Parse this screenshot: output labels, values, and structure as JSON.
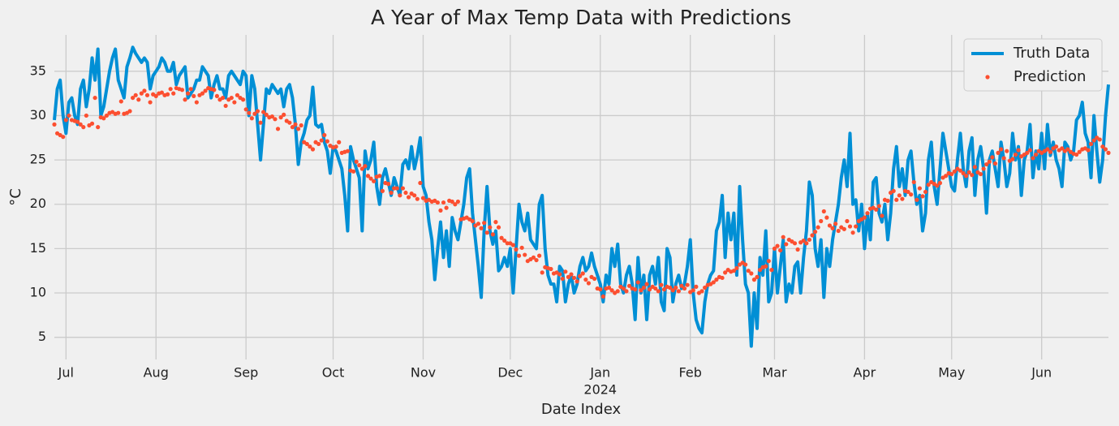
{
  "chart_data": {
    "type": "line",
    "title": "A Year of Max Temp Data with Predictions",
    "xlabel": "Date Index",
    "ylabel": "°C",
    "year_label": "2024",
    "categories": [
      null,
      null,
      null,
      null,
      "Jul",
      null,
      null,
      null,
      null,
      null,
      null,
      null,
      null,
      null,
      null,
      null,
      null,
      null,
      null,
      null,
      null,
      null,
      null,
      null,
      null,
      null,
      null,
      null,
      null,
      null,
      null,
      null,
      null,
      null,
      null,
      "Aug",
      null,
      null,
      null,
      null,
      null,
      null,
      null,
      null,
      null,
      null,
      null,
      null,
      null,
      null,
      null,
      null,
      null,
      null,
      null,
      null,
      null,
      null,
      null,
      null,
      null,
      null,
      null,
      null,
      null,
      null,
      "Sep",
      null,
      null,
      null,
      null,
      null,
      null,
      null,
      null,
      null,
      null,
      null,
      null,
      null,
      null,
      null,
      null,
      null,
      null,
      null,
      null,
      null,
      null,
      null,
      null,
      null,
      null,
      null,
      null,
      null,
      "Oct",
      null,
      null,
      null,
      null,
      null,
      null,
      null,
      null,
      null,
      null,
      null,
      null,
      null,
      null,
      null,
      null,
      null,
      null,
      null,
      null,
      null,
      null,
      null,
      null,
      null,
      null,
      null,
      null,
      null,
      null,
      "Nov",
      null,
      null,
      null,
      null,
      null,
      null,
      null,
      null,
      null,
      null,
      null,
      null,
      null,
      null,
      null,
      null,
      null,
      null,
      null,
      null,
      null,
      null,
      null,
      null,
      null,
      null,
      null,
      null,
      null,
      "Dec",
      null,
      null,
      null,
      null,
      null,
      null,
      null,
      null,
      null,
      null,
      null,
      null,
      null,
      null,
      null,
      null,
      null,
      null,
      null,
      null,
      null,
      null,
      null,
      null,
      null,
      null,
      null,
      null,
      null,
      null,
      "Jan",
      null,
      null,
      null,
      null,
      null,
      null,
      null,
      null,
      null,
      null,
      null,
      null,
      null,
      null,
      null,
      null,
      null,
      null,
      null,
      null,
      null,
      null,
      null,
      null,
      null,
      null,
      null,
      null,
      null,
      null,
      "Feb",
      null,
      null,
      null,
      null,
      null,
      null,
      null,
      null,
      null,
      null,
      null,
      null,
      null,
      null,
      null,
      null,
      null,
      null,
      null,
      null,
      null,
      null,
      null,
      null,
      null,
      null,
      null,
      null,
      "Mar",
      null,
      null,
      null,
      null,
      null,
      null,
      null,
      null,
      null,
      null,
      null,
      null,
      null,
      null,
      null,
      null,
      null,
      null,
      null,
      null,
      null,
      null,
      null,
      null,
      null,
      null,
      null,
      null,
      null,
      null,
      "Apr",
      null,
      null,
      null,
      null,
      null,
      null,
      null,
      null,
      null,
      null,
      null,
      null,
      null,
      null,
      null,
      null,
      null,
      null,
      null,
      null,
      null,
      null,
      null,
      null,
      null,
      null,
      null,
      null,
      null,
      "May",
      null,
      null,
      null,
      null,
      null,
      null,
      null,
      null,
      null,
      null,
      null,
      null,
      null,
      null,
      null,
      null,
      null,
      null,
      null,
      null,
      null,
      null,
      null,
      null,
      null,
      null,
      null,
      null,
      null,
      null,
      "Jun",
      null,
      null,
      null,
      null,
      null,
      null,
      null,
      null,
      null,
      null,
      null,
      null,
      null,
      null,
      null,
      null,
      null,
      null,
      null,
      null,
      null,
      null,
      null
    ],
    "series": [
      {
        "name": "Truth Data",
        "color": "#008fd5",
        "style": "line",
        "values": [
          29.5,
          33,
          34,
          30,
          28,
          31.5,
          32,
          30,
          29,
          33,
          34,
          31,
          33,
          36.5,
          34,
          37.5,
          30,
          31,
          33,
          35,
          36.5,
          37.5,
          34,
          33,
          32,
          35.5,
          36.5,
          37.7,
          37,
          36.5,
          36,
          36.5,
          36,
          33,
          34.5,
          35,
          35.5,
          36.5,
          36,
          35,
          35,
          36,
          33.5,
          34.5,
          35,
          35.5,
          32,
          32.5,
          33,
          34,
          34,
          35.5,
          35,
          34.5,
          32,
          33.5,
          34.5,
          33,
          33,
          32,
          34.5,
          35,
          34.5,
          34,
          33.5,
          35,
          34.5,
          30,
          34.5,
          33,
          29,
          25,
          29,
          33,
          32.5,
          33.5,
          33,
          32.5,
          33,
          31,
          33,
          33.5,
          32,
          29,
          24.5,
          27,
          28,
          29.5,
          30,
          33.2,
          29,
          28.7,
          29,
          27,
          26,
          23.5,
          26.5,
          26,
          25,
          24,
          21,
          17,
          26.5,
          25,
          24,
          23,
          17,
          26,
          24,
          25,
          27,
          22,
          20,
          23,
          24,
          22.5,
          21,
          23,
          22,
          21,
          24.5,
          25,
          24,
          26.5,
          24,
          25.5,
          27.5,
          22,
          21,
          18,
          16,
          11.5,
          15,
          18,
          14,
          17,
          13,
          18.5,
          17,
          16,
          18,
          20,
          23,
          24,
          19,
          16,
          13,
          9.5,
          17,
          22,
          17,
          15.5,
          17,
          12.5,
          13,
          14,
          13,
          15,
          10,
          15,
          20,
          18,
          17,
          19,
          16,
          15.5,
          15,
          20,
          21,
          15,
          12,
          11,
          11,
          9,
          13,
          12.5,
          9,
          11,
          12,
          10,
          11,
          13,
          14,
          12.5,
          13,
          14.5,
          13,
          12,
          11,
          9,
          12,
          11,
          15,
          13,
          15.5,
          11,
          10,
          12,
          13,
          11,
          7,
          14,
          10,
          12,
          7,
          12,
          13,
          11,
          14,
          9,
          8,
          15,
          14,
          9,
          11,
          12,
          10.5,
          11,
          13,
          16,
          10,
          7,
          6,
          5.5,
          9,
          11,
          12,
          12.5,
          17,
          18,
          21,
          14,
          19,
          16,
          19,
          12,
          22,
          16,
          11,
          10,
          4,
          10,
          6,
          14,
          12,
          17,
          9,
          10,
          15,
          10,
          13,
          16,
          9,
          11,
          10,
          13,
          13.5,
          10,
          14,
          17,
          22.5,
          21,
          15,
          13,
          16,
          9.5,
          15,
          13,
          16,
          18,
          20,
          23,
          25,
          22,
          28,
          20,
          20.5,
          17,
          20,
          15,
          19,
          16,
          22.5,
          23,
          19,
          18,
          20,
          16,
          19,
          24,
          26.5,
          22,
          24,
          21,
          25,
          26,
          22.5,
          20,
          21,
          17,
          19,
          25,
          27,
          22,
          20,
          24,
          28,
          26,
          24,
          22,
          21.5,
          25,
          28,
          24,
          22,
          26,
          27.5,
          21,
          25,
          26.5,
          24,
          19,
          25,
          26,
          24,
          22,
          27,
          25,
          22,
          23.5,
          28,
          25,
          26.5,
          21,
          25,
          26,
          29,
          23,
          26,
          24,
          28,
          24,
          29,
          25.5,
          27,
          25,
          24,
          22,
          27,
          26.5,
          25,
          26,
          29.5,
          30,
          31.5,
          28,
          27,
          23,
          30,
          26,
          22.5,
          25,
          30,
          33.5
        ]
      },
      {
        "name": "Prediction",
        "color": "#fc4f30",
        "style": "dots",
        "values": [
          29,
          28,
          27.8,
          27.6,
          29.5,
          30,
          29.5,
          29.4,
          29.3,
          29,
          28.7,
          30,
          28.9,
          29.1,
          32,
          28.7,
          29.8,
          29.7,
          30,
          30.3,
          30.4,
          30.2,
          30.3,
          31.6,
          30.2,
          30.3,
          30.5,
          32,
          32.3,
          31.8,
          32.5,
          32.8,
          32.3,
          31.5,
          32.4,
          32.2,
          32.5,
          32.6,
          32.3,
          32.4,
          33,
          32.5,
          33.1,
          33,
          32.9,
          31.8,
          32.5,
          33,
          32.2,
          31.5,
          32.3,
          32.5,
          32.8,
          33.1,
          33,
          32.9,
          32.2,
          31.8,
          32,
          31.1,
          31.8,
          32,
          31.5,
          32.3,
          32,
          31.8,
          30.7,
          30.3,
          29.7,
          30.2,
          30.5,
          29.2,
          30.4,
          30.1,
          29.8,
          29.9,
          29.6,
          28.5,
          29.8,
          30.1,
          29.4,
          29.2,
          28.7,
          29,
          28.5,
          28.9,
          27,
          26.8,
          26.5,
          26.2,
          27,
          26.8,
          27.2,
          27.8,
          27.1,
          26.6,
          26.4,
          26.5,
          27,
          25.8,
          25.9,
          26,
          23.8,
          23.7,
          24.8,
          24.4,
          24,
          24.3,
          23.2,
          22.9,
          22.6,
          23.1,
          23.2,
          21.5,
          22.4,
          22.3,
          21.3,
          21.8,
          21.8,
          21,
          21.8,
          21.3,
          20.8,
          21.2,
          21,
          20.6,
          22.4,
          20.7,
          20.4,
          20.5,
          20.3,
          20.4,
          20.2,
          19.3,
          20.2,
          19.6,
          20.4,
          20.3,
          20,
          20.3,
          18.3,
          18.4,
          18.5,
          18.3,
          18.1,
          17.6,
          17.8,
          17.3,
          17.9,
          16.8,
          17.4,
          16.6,
          18,
          17.4,
          16.2,
          15.9,
          15.6,
          15.6,
          15.4,
          14.9,
          14.2,
          15.1,
          14.3,
          13.6,
          13.8,
          14,
          13.7,
          14.2,
          12.3,
          12.9,
          12.8,
          12.7,
          12.2,
          12.3,
          12.1,
          11.6,
          12.4,
          11.8,
          12.1,
          11.7,
          11.3,
          11.9,
          12.2,
          11.5,
          11.1,
          11.8,
          11.6,
          10.5,
          10.4,
          9.6,
          10.5,
          10.6,
          10.3,
          10,
          10.2,
          10.7,
          10.5,
          10.2,
          10.8,
          10.5,
          10.4,
          11.2,
          10.3,
          10.6,
          11,
          10.4,
          10.7,
          10.5,
          10.2,
          10.9,
          10.4,
          10.7,
          10.6,
          10.3,
          10.6,
          10.2,
          10.8,
          10.5,
          10.9,
          10.1,
          10.3,
          10.7,
          10,
          10.2,
          10.6,
          10.9,
          11,
          11.2,
          11.5,
          11.8,
          11.7,
          12.3,
          12.6,
          12.4,
          12.5,
          12.8,
          13.2,
          13.4,
          13.2,
          12.5,
          12.2,
          11.5,
          11.8,
          12.6,
          12.9,
          13,
          13.6,
          12.6,
          15,
          15.3,
          14.8,
          16.3,
          15.5,
          16,
          15.8,
          15.6,
          14.9,
          15.7,
          15.9,
          15.6,
          16,
          16.5,
          16.9,
          17.4,
          18.1,
          19.2,
          18.5,
          17.6,
          17.3,
          17.8,
          17,
          17.4,
          17.2,
          18.1,
          17.5,
          16.8,
          17.5,
          18.1,
          18.3,
          18.5,
          19,
          19.5,
          19.6,
          19.4,
          19.8,
          18.7,
          20.5,
          20.4,
          21.3,
          21.5,
          20.5,
          21,
          20.6,
          21.5,
          21.4,
          21.1,
          22.5,
          20.5,
          21.8,
          20.9,
          21.4,
          22.2,
          22.5,
          22.3,
          22.1,
          22.4,
          23,
          23.2,
          23.5,
          23.4,
          23.7,
          24,
          23.8,
          23.5,
          23.2,
          23.6,
          23.3,
          24.2,
          23.6,
          23.4,
          24,
          24.5,
          24.8,
          25.3,
          24.6,
          25.8,
          26.2,
          25.2,
          26,
          24.9,
          25.1,
          25.6,
          26.1,
          25.4,
          25.6,
          25.8,
          26.1,
          25.2,
          25.6,
          26,
          25.8,
          26,
          26.2,
          25.9,
          26.3,
          26.5,
          26.1,
          26.3,
          26,
          26.2,
          25.9,
          25.7,
          25.6,
          25.9,
          26.2,
          26.3,
          26.1,
          26.8,
          27.2,
          27.5,
          27.3,
          26.5,
          26.2,
          25.8
        ]
      }
    ],
    "ylim": [
      2.5,
      39.1
    ],
    "yticks": [
      5,
      10,
      15,
      20,
      25,
      30,
      35
    ],
    "grid": true,
    "legend": "upper-right"
  }
}
